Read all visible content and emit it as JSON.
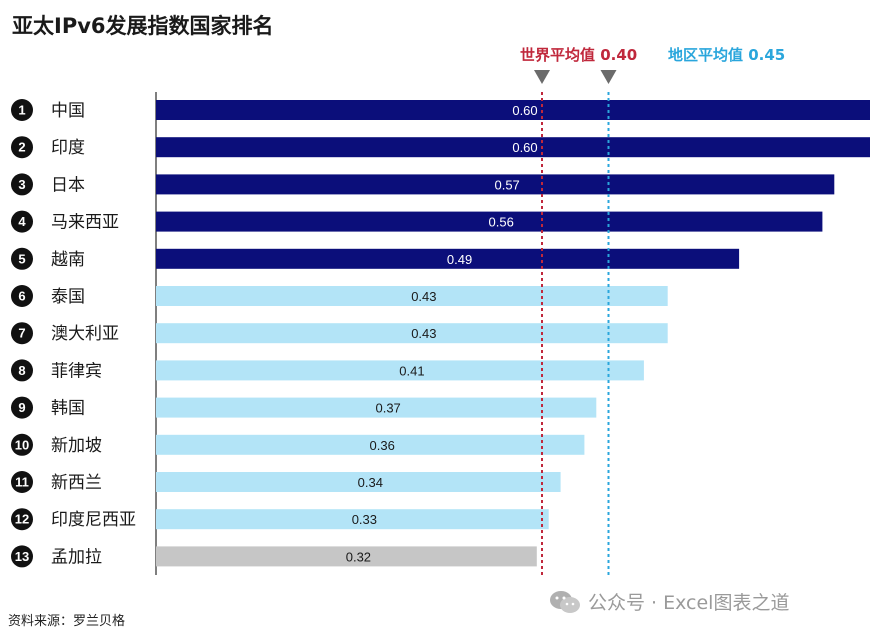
{
  "chart_data": {
    "type": "bar",
    "orientation": "horizontal",
    "title": "亚太IPv6发展指数国家排名",
    "ranks": [
      "1",
      "2",
      "3",
      "4",
      "5",
      "6",
      "7",
      "8",
      "9",
      "10",
      "11",
      "12",
      "13"
    ],
    "categories": [
      "中国",
      "印度",
      "日本",
      "马来西亚",
      "越南",
      "泰国",
      "澳大利亚",
      "菲律宾",
      "韩国",
      "新加坡",
      "新西兰",
      "印度尼西亚",
      "孟加拉"
    ],
    "values": [
      0.6,
      0.6,
      0.57,
      0.56,
      0.49,
      0.43,
      0.43,
      0.41,
      0.37,
      0.36,
      0.34,
      0.33,
      0.32
    ],
    "value_labels": [
      "0.60",
      "0.60",
      "0.57",
      "0.56",
      "0.49",
      "0.43",
      "0.43",
      "0.41",
      "0.37",
      "0.36",
      "0.34",
      "0.33",
      "0.32"
    ],
    "bar_colors": [
      "#0b0e7a",
      "#0b0e7a",
      "#0b0e7a",
      "#0b0e7a",
      "#0b0e7a",
      "#b3e4f7",
      "#b3e4f7",
      "#b3e4f7",
      "#b3e4f7",
      "#b3e4f7",
      "#b3e4f7",
      "#b3e4f7",
      "#c6c6c6"
    ],
    "xlim": [
      0,
      0.6
    ],
    "reference_lines": [
      {
        "label": "世界平均值 0.40",
        "value": 0.4,
        "color": "#c0283c"
      },
      {
        "label": "地区平均值 0.45",
        "value": 0.45,
        "color": "#2aa6dc"
      }
    ],
    "grid": false,
    "legend": "none"
  },
  "source": "资料来源：罗兰贝格",
  "watermark": "公众号 · Excel图表之道"
}
